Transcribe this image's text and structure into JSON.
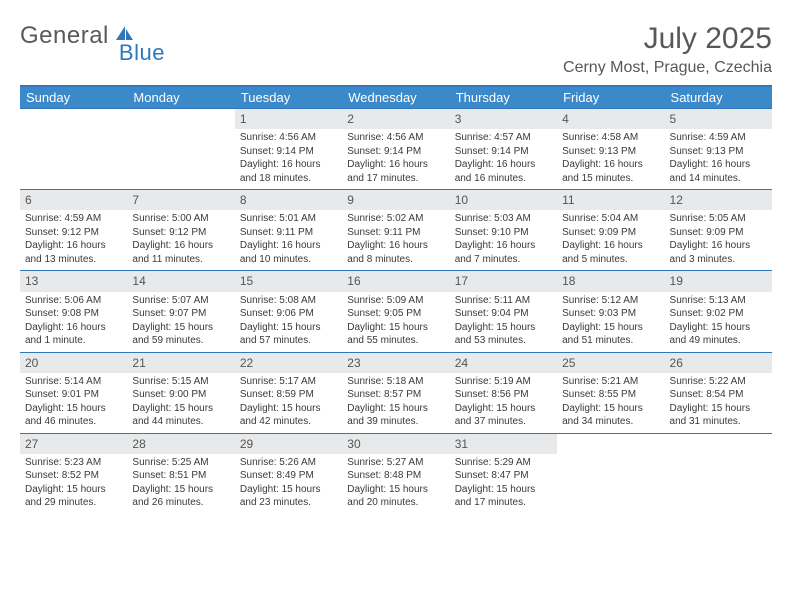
{
  "brand": {
    "name_a": "General",
    "name_b": "Blue"
  },
  "title": "July 2025",
  "location": "Cerny Most, Prague, Czechia",
  "colors": {
    "header_bg": "#3b89c9",
    "border": "#2f78bd",
    "daynum_bg": "#e7e9eb",
    "text": "#3a3a3a",
    "title_text": "#585858"
  },
  "day_labels": [
    "Sunday",
    "Monday",
    "Tuesday",
    "Wednesday",
    "Thursday",
    "Friday",
    "Saturday"
  ],
  "weeks": [
    [
      null,
      null,
      {
        "n": "1",
        "sunrise": "4:56 AM",
        "sunset": "9:14 PM",
        "daylight": "16 hours and 18 minutes."
      },
      {
        "n": "2",
        "sunrise": "4:56 AM",
        "sunset": "9:14 PM",
        "daylight": "16 hours and 17 minutes."
      },
      {
        "n": "3",
        "sunrise": "4:57 AM",
        "sunset": "9:14 PM",
        "daylight": "16 hours and 16 minutes."
      },
      {
        "n": "4",
        "sunrise": "4:58 AM",
        "sunset": "9:13 PM",
        "daylight": "16 hours and 15 minutes."
      },
      {
        "n": "5",
        "sunrise": "4:59 AM",
        "sunset": "9:13 PM",
        "daylight": "16 hours and 14 minutes."
      }
    ],
    [
      {
        "n": "6",
        "sunrise": "4:59 AM",
        "sunset": "9:12 PM",
        "daylight": "16 hours and 13 minutes."
      },
      {
        "n": "7",
        "sunrise": "5:00 AM",
        "sunset": "9:12 PM",
        "daylight": "16 hours and 11 minutes."
      },
      {
        "n": "8",
        "sunrise": "5:01 AM",
        "sunset": "9:11 PM",
        "daylight": "16 hours and 10 minutes."
      },
      {
        "n": "9",
        "sunrise": "5:02 AM",
        "sunset": "9:11 PM",
        "daylight": "16 hours and 8 minutes."
      },
      {
        "n": "10",
        "sunrise": "5:03 AM",
        "sunset": "9:10 PM",
        "daylight": "16 hours and 7 minutes."
      },
      {
        "n": "11",
        "sunrise": "5:04 AM",
        "sunset": "9:09 PM",
        "daylight": "16 hours and 5 minutes."
      },
      {
        "n": "12",
        "sunrise": "5:05 AM",
        "sunset": "9:09 PM",
        "daylight": "16 hours and 3 minutes."
      }
    ],
    [
      {
        "n": "13",
        "sunrise": "5:06 AM",
        "sunset": "9:08 PM",
        "daylight": "16 hours and 1 minute."
      },
      {
        "n": "14",
        "sunrise": "5:07 AM",
        "sunset": "9:07 PM",
        "daylight": "15 hours and 59 minutes."
      },
      {
        "n": "15",
        "sunrise": "5:08 AM",
        "sunset": "9:06 PM",
        "daylight": "15 hours and 57 minutes."
      },
      {
        "n": "16",
        "sunrise": "5:09 AM",
        "sunset": "9:05 PM",
        "daylight": "15 hours and 55 minutes."
      },
      {
        "n": "17",
        "sunrise": "5:11 AM",
        "sunset": "9:04 PM",
        "daylight": "15 hours and 53 minutes."
      },
      {
        "n": "18",
        "sunrise": "5:12 AM",
        "sunset": "9:03 PM",
        "daylight": "15 hours and 51 minutes."
      },
      {
        "n": "19",
        "sunrise": "5:13 AM",
        "sunset": "9:02 PM",
        "daylight": "15 hours and 49 minutes."
      }
    ],
    [
      {
        "n": "20",
        "sunrise": "5:14 AM",
        "sunset": "9:01 PM",
        "daylight": "15 hours and 46 minutes."
      },
      {
        "n": "21",
        "sunrise": "5:15 AM",
        "sunset": "9:00 PM",
        "daylight": "15 hours and 44 minutes."
      },
      {
        "n": "22",
        "sunrise": "5:17 AM",
        "sunset": "8:59 PM",
        "daylight": "15 hours and 42 minutes."
      },
      {
        "n": "23",
        "sunrise": "5:18 AM",
        "sunset": "8:57 PM",
        "daylight": "15 hours and 39 minutes."
      },
      {
        "n": "24",
        "sunrise": "5:19 AM",
        "sunset": "8:56 PM",
        "daylight": "15 hours and 37 minutes."
      },
      {
        "n": "25",
        "sunrise": "5:21 AM",
        "sunset": "8:55 PM",
        "daylight": "15 hours and 34 minutes."
      },
      {
        "n": "26",
        "sunrise": "5:22 AM",
        "sunset": "8:54 PM",
        "daylight": "15 hours and 31 minutes."
      }
    ],
    [
      {
        "n": "27",
        "sunrise": "5:23 AM",
        "sunset": "8:52 PM",
        "daylight": "15 hours and 29 minutes."
      },
      {
        "n": "28",
        "sunrise": "5:25 AM",
        "sunset": "8:51 PM",
        "daylight": "15 hours and 26 minutes."
      },
      {
        "n": "29",
        "sunrise": "5:26 AM",
        "sunset": "8:49 PM",
        "daylight": "15 hours and 23 minutes."
      },
      {
        "n": "30",
        "sunrise": "5:27 AM",
        "sunset": "8:48 PM",
        "daylight": "15 hours and 20 minutes."
      },
      {
        "n": "31",
        "sunrise": "5:29 AM",
        "sunset": "8:47 PM",
        "daylight": "15 hours and 17 minutes."
      },
      null,
      null
    ]
  ],
  "labels": {
    "sunrise": "Sunrise:",
    "sunset": "Sunset:",
    "daylight": "Daylight:"
  }
}
